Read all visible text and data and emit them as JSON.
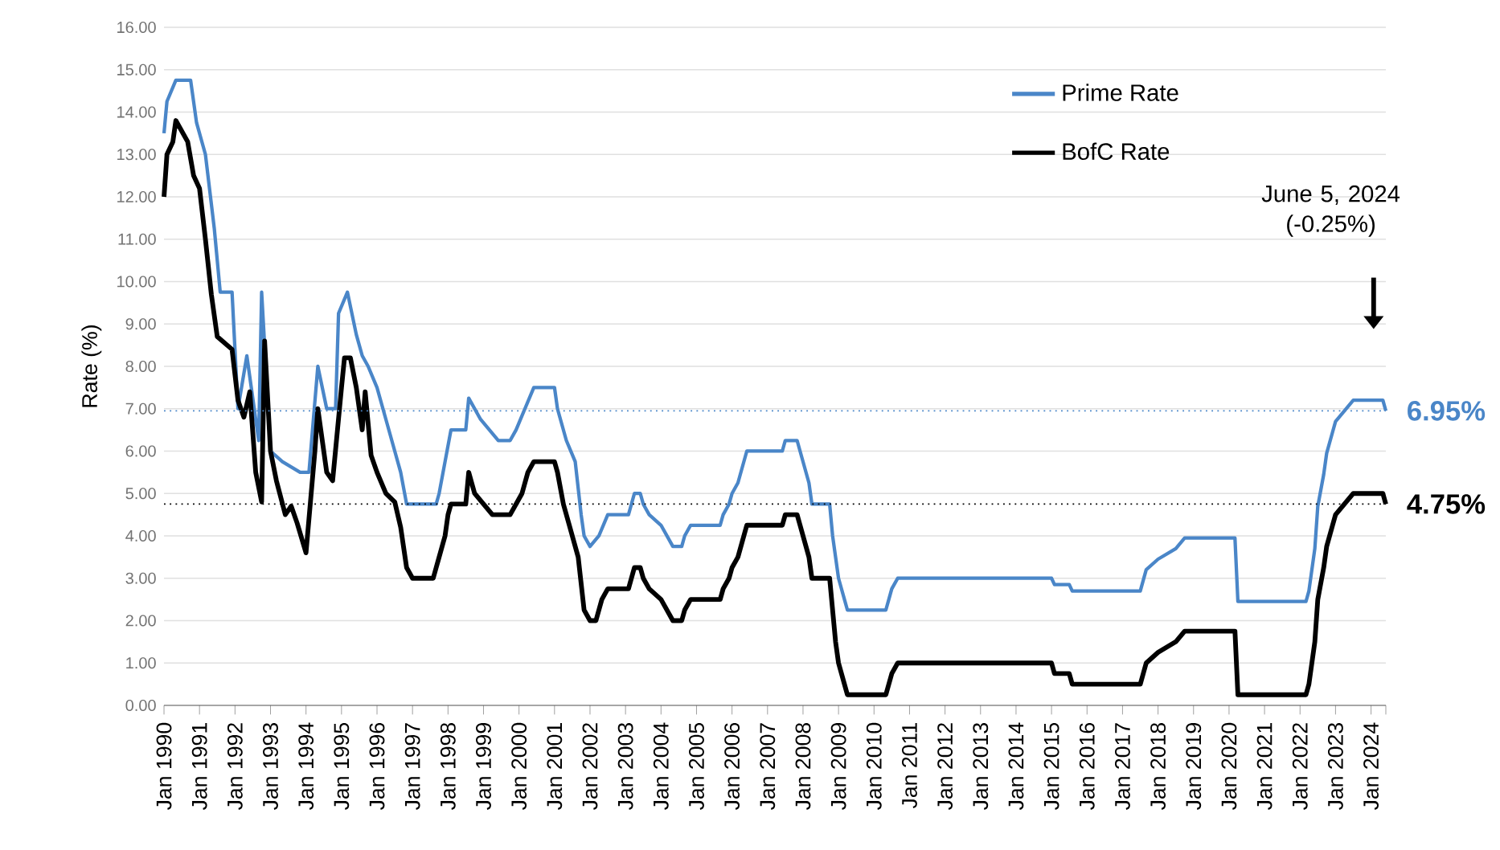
{
  "chart_data": {
    "type": "line",
    "ylabel": "Rate (%)",
    "xlim": [
      "1990-01",
      "2024-06"
    ],
    "ylim": [
      0,
      16
    ],
    "yticks": [
      {
        "value": 0,
        "label": "0.00"
      },
      {
        "value": 1,
        "label": "1.00"
      },
      {
        "value": 2,
        "label": "2.00"
      },
      {
        "value": 3,
        "label": "3.00"
      },
      {
        "value": 4,
        "label": "4.00"
      },
      {
        "value": 5,
        "label": "5.00"
      },
      {
        "value": 6,
        "label": "6.00"
      },
      {
        "value": 7,
        "label": "7.00"
      },
      {
        "value": 8,
        "label": "8.00"
      },
      {
        "value": 9,
        "label": "9.00"
      },
      {
        "value": 10,
        "label": "10.00"
      },
      {
        "value": 11,
        "label": "11.00"
      },
      {
        "value": 12,
        "label": "12.00"
      },
      {
        "value": 13,
        "label": "13.00"
      },
      {
        "value": 14,
        "label": "14.00"
      },
      {
        "value": 15,
        "label": "15.00"
      },
      {
        "value": 16,
        "label": "16.00"
      }
    ],
    "xticks": [
      {
        "value": "1990-01",
        "label": "Jan 1990"
      },
      {
        "value": "1991-01",
        "label": "Jan 1991"
      },
      {
        "value": "1992-01",
        "label": "Jan 1992"
      },
      {
        "value": "1993-01",
        "label": "Jan 1993"
      },
      {
        "value": "1994-01",
        "label": "Jan 1994"
      },
      {
        "value": "1995-01",
        "label": "Jan 1995"
      },
      {
        "value": "1996-01",
        "label": "Jan 1996"
      },
      {
        "value": "1997-01",
        "label": "Jan 1997"
      },
      {
        "value": "1998-01",
        "label": "Jan 1998"
      },
      {
        "value": "1999-01",
        "label": "Jan 1999"
      },
      {
        "value": "2000-01",
        "label": "Jan 2000"
      },
      {
        "value": "2001-01",
        "label": "Jan 2001"
      },
      {
        "value": "2002-01",
        "label": "Jan 2002"
      },
      {
        "value": "2003-01",
        "label": "Jan 2003"
      },
      {
        "value": "2004-01",
        "label": "Jan 2004"
      },
      {
        "value": "2005-01",
        "label": "Jan 2005"
      },
      {
        "value": "2006-01",
        "label": "Jan 2006"
      },
      {
        "value": "2007-01",
        "label": "Jan 2007"
      },
      {
        "value": "2008-01",
        "label": "Jan 2008"
      },
      {
        "value": "2009-01",
        "label": "Jan 2009"
      },
      {
        "value": "2010-01",
        "label": "Jan 2010"
      },
      {
        "value": "2011-01",
        "label": "Jan 2011"
      },
      {
        "value": "2012-01",
        "label": "Jan 2012"
      },
      {
        "value": "2013-01",
        "label": "Jan 2013"
      },
      {
        "value": "2014-01",
        "label": "Jan 2014"
      },
      {
        "value": "2015-01",
        "label": "Jan 2015"
      },
      {
        "value": "2016-01",
        "label": "Jan 2016"
      },
      {
        "value": "2017-01",
        "label": "Jan 2017"
      },
      {
        "value": "2018-01",
        "label": "Jan 2018"
      },
      {
        "value": "2019-01",
        "label": "Jan 2019"
      },
      {
        "value": "2020-01",
        "label": "Jan 2020"
      },
      {
        "value": "2021-01",
        "label": "Jan 2021"
      },
      {
        "value": "2022-01",
        "label": "Jan 2022"
      },
      {
        "value": "2023-01",
        "label": "Jan 2023"
      },
      {
        "value": "2024-01",
        "label": "Jan 2024"
      },
      {
        "value": "2024-06",
        "label": null
      }
    ],
    "grid": "y",
    "legend": "top right",
    "marker": "none",
    "line_style": "solid",
    "series": [
      {
        "name": "Prime Rate",
        "color": "#4a86c8",
        "x": [
          "1990-01",
          "1990-02",
          "1990-05",
          "1990-10",
          "1990-12",
          "1991-03",
          "1991-06",
          "1991-08",
          "1991-12",
          "1992-02",
          "1992-05",
          "1992-09",
          "1992-10",
          "1993-01",
          "1993-05",
          "1993-11",
          "1994-02",
          "1994-05",
          "1994-08",
          "1994-11",
          "1994-12",
          "1995-03",
          "1995-06",
          "1995-08",
          "1995-10",
          "1996-01",
          "1996-03",
          "1996-07",
          "1996-09",
          "1996-11",
          "1997-09",
          "1997-10",
          "1998-02",
          "1998-07",
          "1998-08",
          "1998-12",
          "1999-03",
          "1999-06",
          "1999-10",
          "1999-12",
          "2000-03",
          "2000-06",
          "2001-01",
          "2001-02",
          "2001-05",
          "2001-08",
          "2001-10",
          "2001-11",
          "2002-01",
          "2002-04",
          "2002-07",
          "2003-02",
          "2003-03",
          "2003-04",
          "2003-06",
          "2003-07",
          "2003-09",
          "2004-01",
          "2004-03",
          "2004-05",
          "2004-08",
          "2004-09",
          "2004-11",
          "2005-09",
          "2005-10",
          "2005-12",
          "2006-01",
          "2006-03",
          "2006-04",
          "2006-05",
          "2006-06",
          "2007-06",
          "2007-07",
          "2007-11",
          "2007-12",
          "2008-01",
          "2008-03",
          "2008-04",
          "2008-10",
          "2008-11",
          "2008-12",
          "2009-01",
          "2009-03",
          "2009-04",
          "2010-05",
          "2010-06",
          "2010-07",
          "2010-09",
          "2015-01",
          "2015-02",
          "2015-07",
          "2015-08",
          "2017-07",
          "2017-08",
          "2017-09",
          "2018-01",
          "2018-07",
          "2018-10",
          "2020-03",
          "2020-04",
          "2022-03",
          "2022-04",
          "2022-06",
          "2022-07",
          "2022-09",
          "2022-10",
          "2022-12",
          "2023-01",
          "2023-07",
          "2024-05",
          "2024-06"
        ],
        "values": [
          13.5,
          14.25,
          14.75,
          14.75,
          13.75,
          13.0,
          11.25,
          9.75,
          9.75,
          7.0,
          8.25,
          6.25,
          9.75,
          6.0,
          5.75,
          5.5,
          5.5,
          8.0,
          7.0,
          7.0,
          9.25,
          9.75,
          8.75,
          8.25,
          8.0,
          7.5,
          7.0,
          6.0,
          5.5,
          4.75,
          4.75,
          5.0,
          6.5,
          6.5,
          7.25,
          6.75,
          6.5,
          6.25,
          6.25,
          6.5,
          7.0,
          7.5,
          7.5,
          7.0,
          6.25,
          5.75,
          4.5,
          4.0,
          3.75,
          4.0,
          4.5,
          4.5,
          4.75,
          5.0,
          5.0,
          4.75,
          4.5,
          4.25,
          4.0,
          3.75,
          3.75,
          4.0,
          4.25,
          4.25,
          4.5,
          4.75,
          5.0,
          5.25,
          5.5,
          5.75,
          6.0,
          6.0,
          6.25,
          6.25,
          6.0,
          5.75,
          5.25,
          4.75,
          4.75,
          4.0,
          3.5,
          3.0,
          2.5,
          2.25,
          2.25,
          2.5,
          2.75,
          3.0,
          3.0,
          2.85,
          2.85,
          2.7,
          2.7,
          2.95,
          3.2,
          3.45,
          3.7,
          3.95,
          3.95,
          2.45,
          2.45,
          2.7,
          3.7,
          4.7,
          5.45,
          5.95,
          6.45,
          6.7,
          7.2,
          7.2,
          6.95
        ]
      },
      {
        "name": "BofC Rate",
        "color": "#000000",
        "x": [
          "1990-01",
          "1990-02",
          "1990-04",
          "1990-05",
          "1990-09",
          "1990-11",
          "1991-01",
          "1991-03",
          "1991-05",
          "1991-07",
          "1991-12",
          "1992-02",
          "1992-04",
          "1992-06",
          "1992-08",
          "1992-10",
          "1992-11",
          "1993-01",
          "1993-03",
          "1993-06",
          "1993-08",
          "1993-10",
          "1994-01",
          "1994-04",
          "1994-05",
          "1994-08",
          "1994-10",
          "1995-01",
          "1995-02",
          "1995-04",
          "1995-06",
          "1995-08",
          "1995-09",
          "1995-11",
          "1996-01",
          "1996-04",
          "1996-07",
          "1996-09",
          "1996-11",
          "1997-01",
          "1997-08",
          "1997-09",
          "1997-10",
          "1997-12",
          "1998-01",
          "1998-02",
          "1998-07",
          "1998-08",
          "1998-10",
          "1999-01",
          "1999-04",
          "1999-10",
          "1999-12",
          "2000-02",
          "2000-04",
          "2000-06",
          "2001-01",
          "2001-02",
          "2001-04",
          "2001-06",
          "2001-09",
          "2001-11",
          "2002-01",
          "2002-03",
          "2002-04",
          "2002-05",
          "2002-07",
          "2003-02",
          "2003-03",
          "2003-04",
          "2003-06",
          "2003-07",
          "2003-09",
          "2004-01",
          "2004-03",
          "2004-05",
          "2004-08",
          "2004-09",
          "2004-11",
          "2005-09",
          "2005-10",
          "2005-12",
          "2006-01",
          "2006-03",
          "2006-04",
          "2006-05",
          "2006-06",
          "2007-06",
          "2007-07",
          "2007-11",
          "2007-12",
          "2008-01",
          "2008-03",
          "2008-04",
          "2008-10",
          "2008-11",
          "2008-12",
          "2009-01",
          "2009-03",
          "2009-04",
          "2010-05",
          "2010-06",
          "2010-07",
          "2010-09",
          "2015-01",
          "2015-02",
          "2015-07",
          "2015-08",
          "2017-07",
          "2017-08",
          "2017-09",
          "2018-01",
          "2018-07",
          "2018-10",
          "2020-03",
          "2020-04",
          "2022-03",
          "2022-04",
          "2022-06",
          "2022-07",
          "2022-09",
          "2022-10",
          "2022-12",
          "2023-01",
          "2023-07",
          "2024-05",
          "2024-06"
        ],
        "values": [
          12.0,
          13.0,
          13.3,
          13.8,
          13.3,
          12.5,
          12.2,
          11.0,
          9.7,
          8.7,
          8.4,
          7.2,
          6.8,
          7.4,
          5.5,
          4.8,
          8.6,
          6.0,
          5.3,
          4.5,
          4.7,
          4.3,
          3.6,
          6.0,
          7.0,
          5.5,
          5.3,
          7.5,
          8.2,
          8.2,
          7.5,
          6.5,
          7.4,
          5.9,
          5.5,
          5.0,
          4.8,
          4.2,
          3.25,
          3.0,
          3.0,
          3.25,
          3.5,
          4.0,
          4.5,
          4.75,
          4.75,
          5.5,
          5.0,
          4.75,
          4.5,
          4.5,
          4.75,
          5.0,
          5.5,
          5.75,
          5.75,
          5.5,
          4.75,
          4.25,
          3.5,
          2.25,
          2.0,
          2.0,
          2.25,
          2.5,
          2.75,
          2.75,
          3.0,
          3.25,
          3.25,
          3.0,
          2.75,
          2.5,
          2.25,
          2.0,
          2.0,
          2.25,
          2.5,
          2.5,
          2.75,
          3.0,
          3.25,
          3.5,
          3.75,
          4.0,
          4.25,
          4.25,
          4.5,
          4.5,
          4.25,
          4.0,
          3.5,
          3.0,
          3.0,
          2.25,
          1.5,
          1.0,
          0.5,
          0.25,
          0.25,
          0.5,
          0.75,
          1.0,
          1.0,
          0.75,
          0.75,
          0.5,
          0.5,
          0.75,
          1.0,
          1.25,
          1.5,
          1.75,
          1.75,
          0.25,
          0.25,
          0.5,
          1.5,
          2.5,
          3.25,
          3.75,
          4.25,
          4.5,
          5.0,
          5.0,
          4.75
        ]
      }
    ],
    "ref_lines": [
      {
        "axis": "y",
        "value": 6.95,
        "label": "6.95%",
        "color": "#4a86c8",
        "line_style": "dotted"
      },
      {
        "axis": "y",
        "value": 4.75,
        "label": "4.75%",
        "color": "#000000",
        "line_style": "dotted"
      }
    ],
    "annotations": [
      "June 5, 2024 (-0.25%)"
    ]
  }
}
